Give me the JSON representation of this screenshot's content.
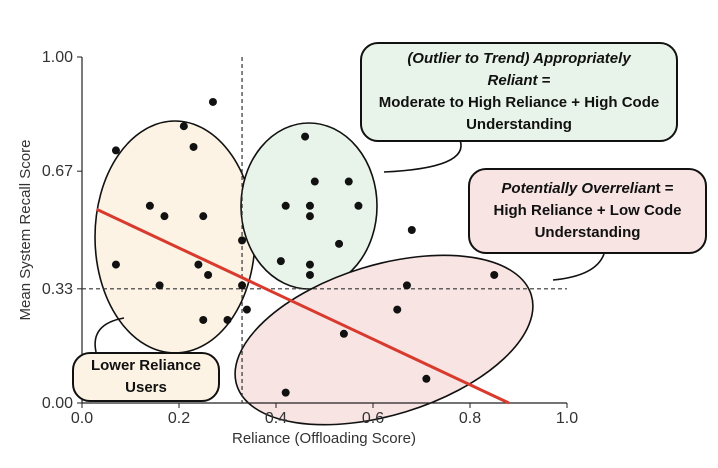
{
  "chart_data": {
    "type": "scatter",
    "xlabel": "Reliance (Offloading Score)",
    "ylabel": "Mean System Recall Score",
    "xlim": [
      0.0,
      1.0
    ],
    "ylim": [
      0.0,
      1.0
    ],
    "x_ticks": [
      "0.0",
      "0.2",
      "0.4",
      "0.6",
      "0.8",
      "1.0"
    ],
    "y_ticks": [
      "0.00",
      "0.33",
      "0.67",
      "1.00"
    ],
    "grid": false,
    "points": [
      {
        "x": 0.07,
        "y": 0.73
      },
      {
        "x": 0.07,
        "y": 0.4
      },
      {
        "x": 0.14,
        "y": 0.57
      },
      {
        "x": 0.16,
        "y": 0.34
      },
      {
        "x": 0.17,
        "y": 0.54
      },
      {
        "x": 0.21,
        "y": 0.8
      },
      {
        "x": 0.23,
        "y": 0.74
      },
      {
        "x": 0.24,
        "y": 0.4
      },
      {
        "x": 0.25,
        "y": 0.54
      },
      {
        "x": 0.25,
        "y": 0.24
      },
      {
        "x": 0.26,
        "y": 0.37
      },
      {
        "x": 0.27,
        "y": 0.87
      },
      {
        "x": 0.3,
        "y": 0.24
      },
      {
        "x": 0.33,
        "y": 0.47
      },
      {
        "x": 0.33,
        "y": 0.34
      },
      {
        "x": 0.34,
        "y": 0.27
      },
      {
        "x": 0.41,
        "y": 0.41
      },
      {
        "x": 0.42,
        "y": 0.57
      },
      {
        "x": 0.42,
        "y": 0.03
      },
      {
        "x": 0.46,
        "y": 0.77
      },
      {
        "x": 0.47,
        "y": 0.57
      },
      {
        "x": 0.47,
        "y": 0.54
      },
      {
        "x": 0.47,
        "y": 0.4
      },
      {
        "x": 0.47,
        "y": 0.37
      },
      {
        "x": 0.48,
        "y": 0.64
      },
      {
        "x": 0.53,
        "y": 0.46
      },
      {
        "x": 0.54,
        "y": 0.2
      },
      {
        "x": 0.55,
        "y": 0.64
      },
      {
        "x": 0.57,
        "y": 0.57
      },
      {
        "x": 0.65,
        "y": 0.27
      },
      {
        "x": 0.67,
        "y": 0.34
      },
      {
        "x": 0.68,
        "y": 0.5
      },
      {
        "x": 0.71,
        "y": 0.07
      },
      {
        "x": 0.85,
        "y": 0.37
      }
    ],
    "trend_line": {
      "x": [
        0.03,
        0.88
      ],
      "y": [
        0.56,
        0.0
      ]
    },
    "reference_lines": {
      "x": 0.33,
      "y": 0.33
    },
    "annotations": {
      "top": {
        "line1": "(Outlier to Trend) Appropriately",
        "line2": "Reliant",
        "line2_suffix": " =",
        "line3": "Moderate to High Reliance + High Code",
        "line4": "Understanding"
      },
      "right": {
        "line1": "Potentially Overrelian",
        "line1_suffix": "t =",
        "line2": "High Reliance + Low Code",
        "line3": "Understanding"
      },
      "bottom_left": {
        "line1": "Lower Reliance",
        "line2": "Users"
      }
    }
  },
  "colors": {
    "trend_line": "#d93a2e",
    "points": "#111111",
    "green_fill": "#e8f4ea",
    "pink_fill": "#f7e4e3",
    "orange_fill": "#fcf3e4"
  }
}
